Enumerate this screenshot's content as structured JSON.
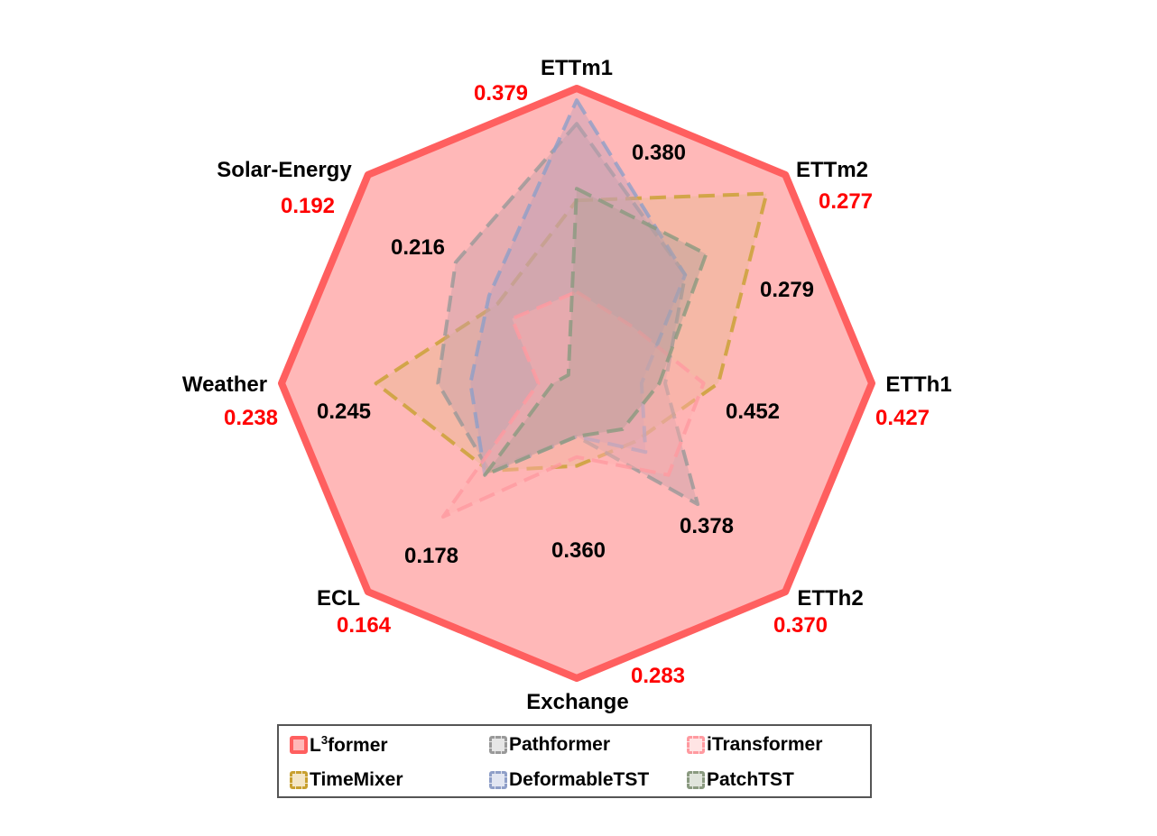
{
  "chart_data": {
    "type": "radar",
    "axes": [
      "ETTm1",
      "ETTm2",
      "ETTh1",
      "ETTh2",
      "Exchange",
      "ECL",
      "Weather",
      "Solar-Energy"
    ],
    "best_values": [
      "0.379",
      "0.277",
      "0.427",
      "0.370",
      "0.283",
      "0.164",
      "0.238",
      "0.192"
    ],
    "inner_values": [
      "0.380",
      "0.279",
      "0.452",
      "0.378",
      "0.360",
      "0.178",
      "0.245",
      "0.216"
    ],
    "grid": true,
    "grid_levels": 4,
    "legend_position": "bottom",
    "series": [
      {
        "name": "L³former",
        "name_base": "L",
        "name_sup": "3",
        "name_rest": "former",
        "color": "#ff5f5f",
        "fill": "#ffb8b8",
        "dashed": false,
        "values": [
          1.0,
          1.0,
          1.0,
          1.0,
          1.0,
          1.0,
          1.0,
          1.0
        ]
      },
      {
        "name": "TimeMixer",
        "color": "#c8a030",
        "fill": "#e8b890",
        "dashed": true,
        "values": [
          0.62,
          0.91,
          0.48,
          0.28,
          0.28,
          0.42,
          0.68,
          0.38
        ]
      },
      {
        "name": "Pathformer",
        "color": "#999999",
        "fill": "#c7a0a8",
        "dashed": true,
        "values": [
          0.88,
          0.52,
          0.3,
          0.58,
          0.18,
          0.42,
          0.47,
          0.58
        ]
      },
      {
        "name": "DeformableTST",
        "color": "#8f9fc8",
        "fill": "#c0a0b8",
        "dashed": true,
        "values": [
          0.96,
          0.52,
          0.22,
          0.33,
          0.18,
          0.44,
          0.36,
          0.42
        ]
      },
      {
        "name": "iTransformer",
        "color": "#ff9aa0",
        "fill": "#ffb0b0",
        "dashed": true,
        "values": [
          0.31,
          0.27,
          0.43,
          0.44,
          0.25,
          0.64,
          0.13,
          0.31
        ]
      },
      {
        "name": "PatchTST",
        "color": "#8a9a80",
        "fill": "#b8a098",
        "dashed": true,
        "values": [
          0.66,
          0.62,
          0.28,
          0.22,
          0.18,
          0.44,
          0.08,
          0.04
        ]
      }
    ],
    "legend_order": [
      "L³former",
      "Pathformer",
      "iTransformer",
      "TimeMixer",
      "DeformableTST",
      "PatchTST"
    ]
  }
}
